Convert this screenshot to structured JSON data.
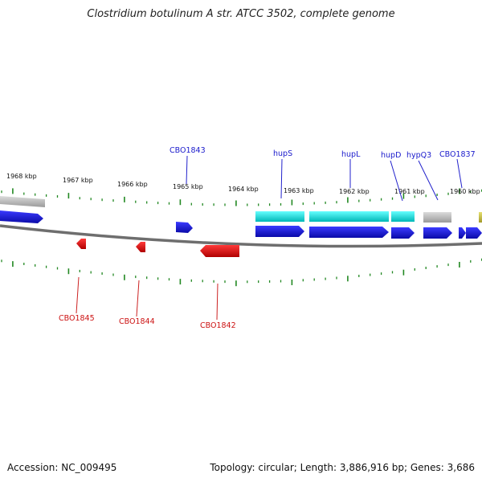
{
  "title": "Clostridium botulinum A str. ATCC 3502, complete genome",
  "accession": "Accession: NC_009495",
  "summary": "Topology: circular; Length: 3,886,916 bp; Genes: 3,686",
  "colors": {
    "forward_gene": "#1515dd",
    "reverse_gene": "#ee1111",
    "rna_or_other": "#00cccc",
    "pseudo_or_misc": "#aaaaaa",
    "tick": "#228822",
    "backbone": "#777777"
  },
  "scale_labels": [
    "1968 kbp",
    "1967 kbp",
    "1966 kbp",
    "1965 kbp",
    "1964 kbp",
    "1963 kbp",
    "1962 kbp",
    "1961 kbp",
    "1960 kbp"
  ],
  "forward_labels": [
    "CBO1843",
    "hupS",
    "hupL",
    "hupD",
    "hypQ3",
    "CBO1837"
  ],
  "reverse_labels": [
    "CBO1845",
    "CBO1844",
    "CBO1842"
  ]
}
